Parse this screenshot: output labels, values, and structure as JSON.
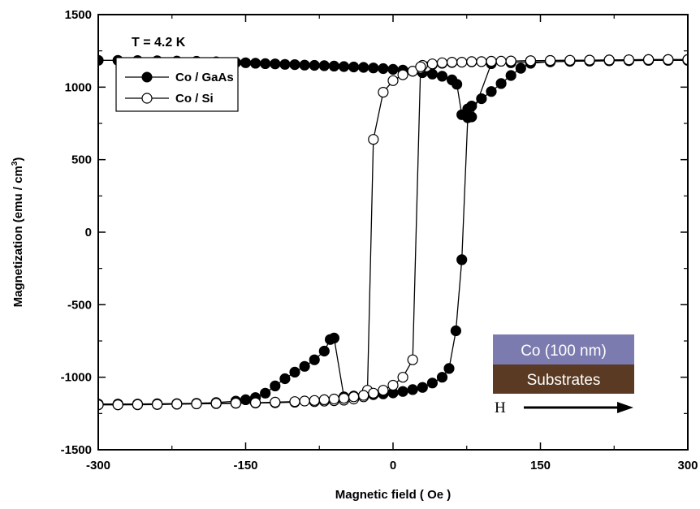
{
  "chart_data": {
    "type": "scatter",
    "xlabel": "Magnetic field ( Oe )",
    "ylabel": "Magnetization (emu / cm",
    "ylabel_sup": "3",
    "ylabel_close": ")",
    "xlim": [
      -300,
      300
    ],
    "ylim": [
      -1500,
      1500
    ],
    "x_ticks": [
      -300,
      -150,
      0,
      150,
      300
    ],
    "y_ticks": [
      -1500,
      -1000,
      -500,
      0,
      500,
      1000,
      1500
    ],
    "grid": false,
    "legend_position": "top-left",
    "annotation": "T = 4.2 K",
    "inset": {
      "top_label": "Co (100 nm)",
      "bottom_label": "Substrates",
      "arrow_label": "H",
      "top_color": "#7b7bb0",
      "bottom_color": "#5a3a22"
    },
    "series": [
      {
        "name": "Co / GaAs",
        "marker": "filled-circle",
        "branches": [
          {
            "x": [
              300,
              280,
              260,
              240,
              220,
              200,
              180,
              160,
              140,
              130,
              120,
              110,
              100,
              90,
              80,
              76,
              70,
              65,
              60,
              50,
              40,
              30,
              20,
              10,
              0,
              -10,
              -20,
              -30,
              -40,
              -50,
              -60,
              -70,
              -80,
              -90,
              -100,
              -110,
              -120,
              -130,
              -140,
              -150,
              -160,
              -180,
              -200,
              -220,
              -240,
              -260,
              -280,
              -300
            ],
            "y": [
              1185,
              1185,
              1185,
              1183,
              1182,
              1180,
              1178,
              1175,
              1165,
              1130,
              1080,
              1025,
              970,
              920,
              870,
              850,
              810,
              1020,
              1050,
              1075,
              1090,
              1100,
              1110,
              1118,
              1123,
              1128,
              1132,
              1136,
              1139,
              1142,
              1145,
              1148,
              1150,
              1152,
              1155,
              1157,
              1160,
              1162,
              1165,
              1168,
              1170,
              1175,
              1178,
              1180,
              1182,
              1183,
              1185,
              1185
            ]
          },
          {
            "x": [
              300,
              280,
              260,
              240,
              220,
              200,
              180,
              160,
              140,
              120,
              100,
              80,
              76,
              70,
              64,
              57,
              50,
              40,
              30,
              20,
              10,
              0,
              -10,
              -20,
              -30,
              -40,
              -50,
              -60,
              -64,
              -70,
              -80,
              -90,
              -100,
              -110,
              -120,
              -130,
              -140,
              -150,
              -160,
              -180,
              -200,
              -220,
              -240,
              -260,
              -280,
              -300
            ],
            "y": [
              1185,
              1185,
              1185,
              1183,
              1182,
              1180,
              1178,
              1175,
              1172,
              1168,
              1162,
              795,
              790,
              -190,
              -680,
              -940,
              -1000,
              -1040,
              -1070,
              -1085,
              -1098,
              -1108,
              -1115,
              -1120,
              -1125,
              -1130,
              -1135,
              -730,
              -740,
              -820,
              -880,
              -925,
              -965,
              -1010,
              -1060,
              -1110,
              -1140,
              -1155,
              -1165,
              -1175,
              -1180,
              -1182,
              -1183,
              -1185,
              -1185,
              -1185
            ]
          }
        ]
      },
      {
        "name": "Co / Si",
        "marker": "open-circle",
        "branches": [
          {
            "x": [
              300,
              280,
              260,
              240,
              220,
              200,
              180,
              160,
              140,
              120,
              110,
              100,
              90,
              80,
              70,
              60,
              50,
              40,
              34,
              28,
              20,
              10,
              0,
              -10,
              -20,
              -26,
              -30,
              -40,
              -50,
              -60,
              -70,
              -80,
              -100,
              -120,
              -140,
              -160,
              -180,
              -200,
              -220,
              -240,
              -260,
              -280,
              -300
            ],
            "y": [
              1190,
              1190,
              1190,
              1188,
              1187,
              1186,
              1185,
              1184,
              1182,
              1180,
              1179,
              1178,
              1176,
              1174,
              1172,
              1170,
              1165,
              1155,
              1140,
              1130,
              1110,
              1085,
              1045,
              965,
              640,
              -1090,
              -1135,
              -1150,
              -1158,
              -1162,
              -1165,
              -1168,
              -1172,
              -1176,
              -1178,
              -1180,
              -1182,
              -1184,
              -1186,
              -1188,
              -1190,
              -1190,
              -1190
            ]
          },
          {
            "x": [
              300,
              280,
              260,
              240,
              220,
              200,
              180,
              160,
              140,
              120,
              100,
              80,
              60,
              50,
              40,
              30,
              28,
              20,
              10,
              0,
              -10,
              -20,
              -30,
              -40,
              -50,
              -60,
              -70,
              -80,
              -90,
              -100,
              -120,
              -140,
              -160,
              -180,
              -200,
              -220,
              -240,
              -260,
              -280,
              -300
            ],
            "y": [
              1190,
              1190,
              1190,
              1188,
              1187,
              1186,
              1185,
              1184,
              1182,
              1180,
              1178,
              1176,
              1172,
              1168,
              1160,
              1150,
              1140,
              -880,
              -1000,
              -1055,
              -1090,
              -1110,
              -1125,
              -1135,
              -1145,
              -1150,
              -1155,
              -1160,
              -1164,
              -1168,
              -1172,
              -1176,
              -1178,
              -1180,
              -1183,
              -1185,
              -1187,
              -1188,
              -1190,
              -1190
            ]
          }
        ]
      }
    ]
  }
}
